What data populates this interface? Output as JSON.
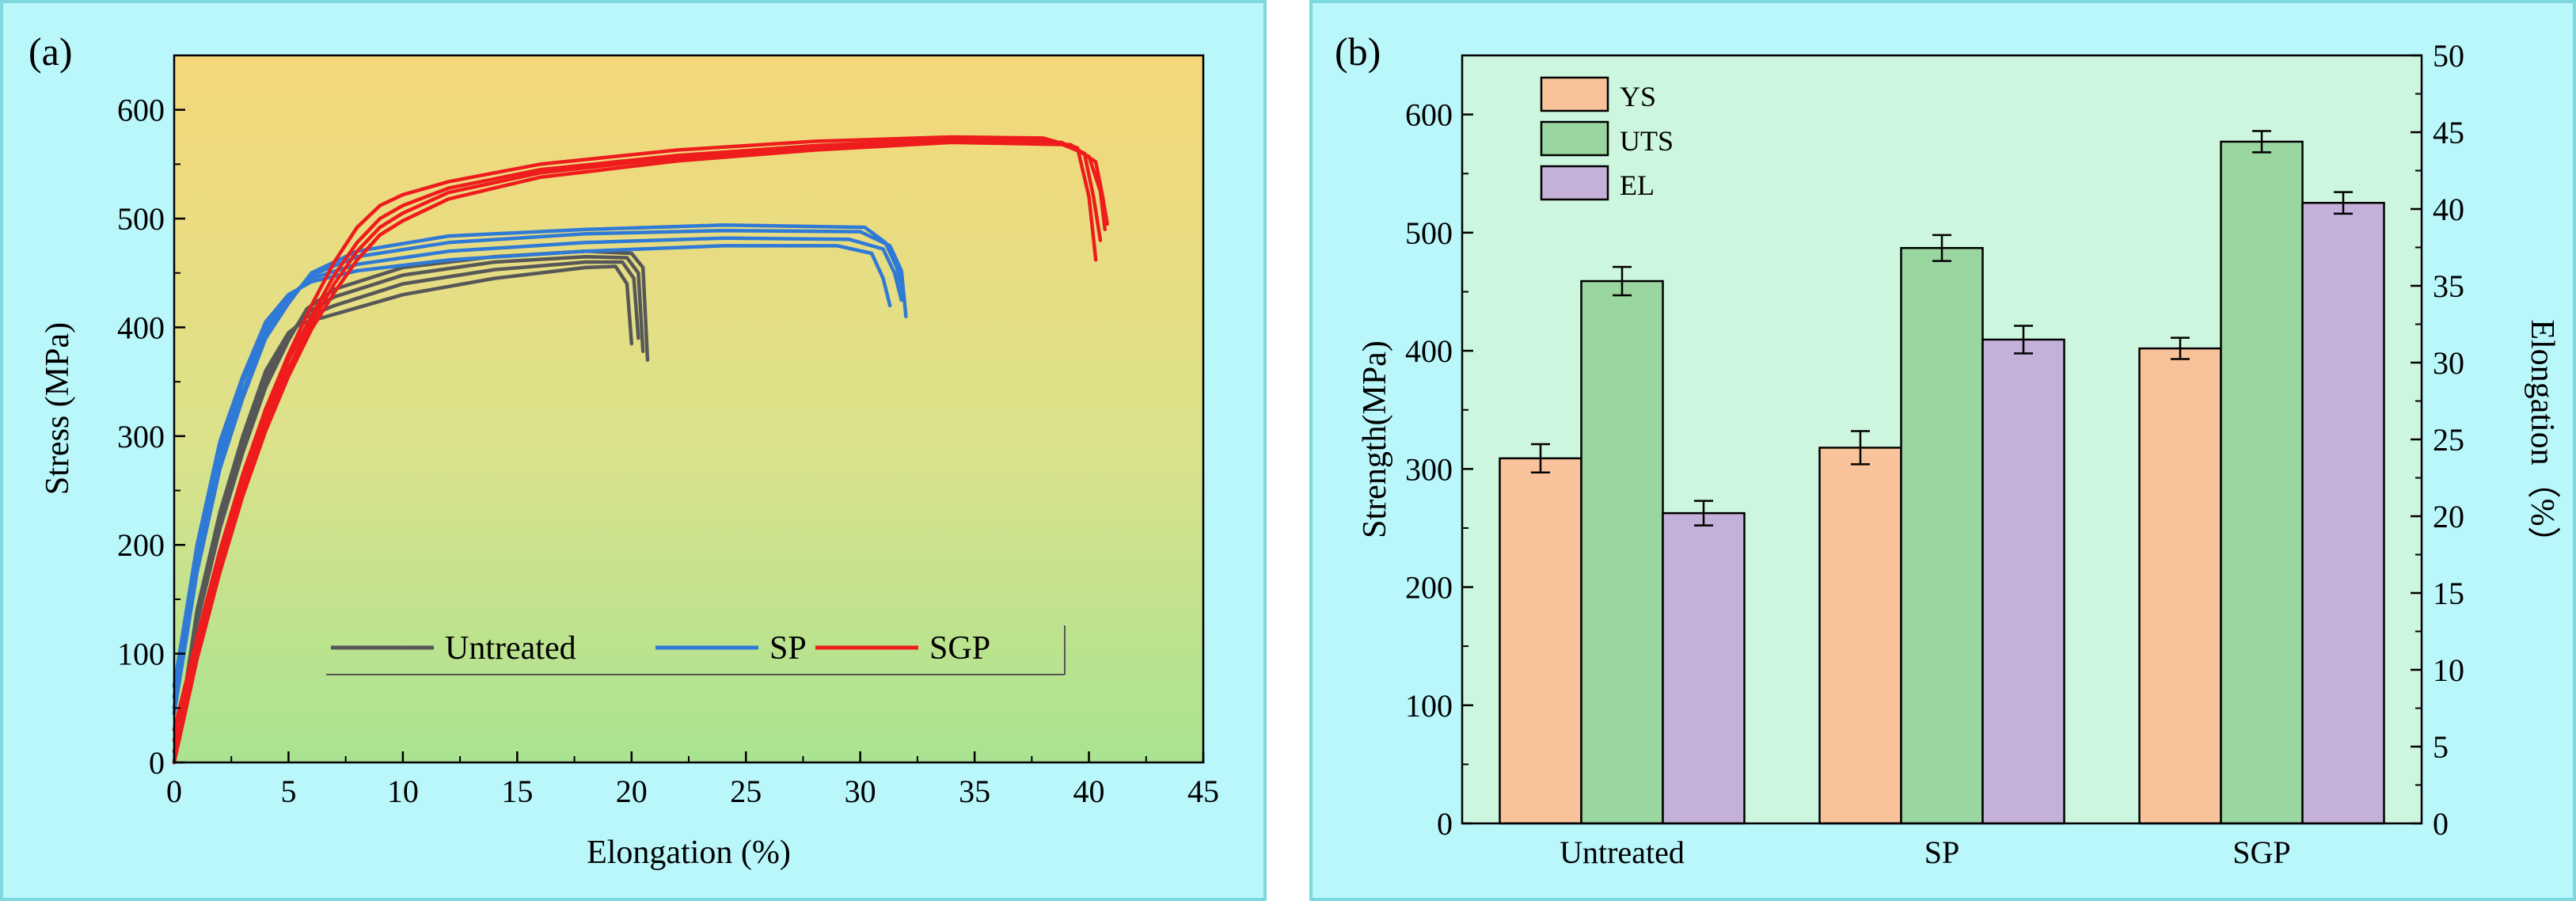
{
  "colors": {
    "panel_bg": "#b9f7fb",
    "border": "#7dd8df",
    "untreated": "#575757",
    "sp": "#2f7ad6",
    "sgp": "#ee1c1c",
    "ys": "#f8c39b",
    "uts": "#9ad6a0",
    "el": "#c4b0d8",
    "plot_b_bg": "#cdf6df"
  },
  "chart_data": [
    {
      "id": "a",
      "panel_label": "(a)",
      "type": "line",
      "xlabel": "Elongation (%)",
      "ylabel": "Stress (MPa)",
      "xlim": [
        0,
        45
      ],
      "ylim": [
        0,
        650
      ],
      "xticks": [
        "0",
        "5",
        "10",
        "15",
        "20",
        "25",
        "30",
        "35",
        "40",
        "45"
      ],
      "yticks": [
        "0",
        "100",
        "200",
        "300",
        "400",
        "500",
        "600"
      ],
      "legend": [
        "Untreated",
        "SP",
        "SGP"
      ],
      "series": [
        {
          "name": "Untreated",
          "curves": [
            {
              "x": [
                0,
                1,
                2,
                3,
                4,
                5,
                5.5,
                7,
                10,
                14,
                18,
                19.3,
                19.8,
                20.0
              ],
              "y": [
                0,
                140,
                230,
                300,
                360,
                395,
                403,
                412,
                430,
                445,
                455,
                456,
                440,
                385
              ]
            },
            {
              "x": [
                0,
                1,
                2,
                3,
                4,
                5,
                5.6,
                7,
                10,
                14,
                18,
                19.6,
                20.1,
                20.3
              ],
              "y": [
                0,
                135,
                225,
                295,
                355,
                392,
                408,
                420,
                440,
                453,
                460,
                460,
                445,
                390
              ]
            },
            {
              "x": [
                0,
                1,
                2,
                3,
                4,
                5,
                5.7,
                7,
                10,
                14,
                18,
                19.8,
                20.3,
                20.5
              ],
              "y": [
                0,
                130,
                220,
                290,
                350,
                390,
                412,
                428,
                448,
                460,
                465,
                464,
                450,
                378
              ]
            },
            {
              "x": [
                0,
                1,
                2,
                3,
                4,
                5,
                5.8,
                7,
                10,
                14,
                18,
                20.0,
                20.5,
                20.7
              ],
              "y": [
                0,
                128,
                215,
                285,
                345,
                388,
                417,
                435,
                455,
                465,
                470,
                468,
                455,
                370
              ]
            }
          ]
        },
        {
          "name": "SP",
          "curves": [
            {
              "x": [
                0,
                1,
                2,
                3,
                4,
                5,
                6,
                8,
                12,
                18,
                24,
                29,
                30.5,
                31.0,
                31.3
              ],
              "y": [
                70,
                200,
                295,
                355,
                405,
                430,
                442,
                452,
                462,
                470,
                475,
                475,
                468,
                445,
                420
              ]
            },
            {
              "x": [
                0,
                1,
                2,
                3,
                4,
                5,
                6,
                8,
                12,
                18,
                24,
                29.5,
                31.0,
                31.5,
                31.8
              ],
              "y": [
                60,
                190,
                285,
                350,
                400,
                428,
                445,
                458,
                470,
                478,
                482,
                481,
                472,
                450,
                425
              ]
            },
            {
              "x": [
                0,
                1,
                2,
                3,
                4,
                5,
                6,
                8,
                12,
                18,
                24,
                30,
                31.3,
                31.8,
                32.0
              ],
              "y": [
                50,
                180,
                275,
                340,
                395,
                425,
                448,
                465,
                478,
                486,
                489,
                488,
                475,
                452,
                410
              ]
            },
            {
              "x": [
                0,
                1,
                2,
                3,
                4,
                5,
                6,
                8,
                12,
                18,
                24,
                30.2,
                31.1,
                31.6,
                31.9
              ],
              "y": [
                45,
                175,
                270,
                335,
                390,
                422,
                450,
                470,
                484,
                490,
                494,
                492,
                478,
                455,
                430
              ]
            }
          ]
        },
        {
          "name": "SGP",
          "curves": [
            {
              "x": [
                0,
                1,
                2,
                3,
                4,
                5,
                6,
                7,
                8,
                9,
                10,
                12,
                16,
                22,
                28,
                34,
                38,
                39.5,
                40.0,
                40.3
              ],
              "y": [
                30,
                115,
                195,
                265,
                325,
                375,
                420,
                460,
                492,
                512,
                522,
                534,
                550,
                563,
                571,
                575,
                574,
                565,
                520,
                462
              ]
            },
            {
              "x": [
                0,
                1,
                2,
                3,
                4,
                5,
                6,
                7,
                8,
                9,
                10,
                12,
                16,
                22,
                28,
                34,
                38.5,
                39.8,
                40.2,
                40.5
              ],
              "y": [
                20,
                105,
                185,
                255,
                318,
                370,
                410,
                448,
                478,
                500,
                512,
                528,
                545,
                558,
                567,
                573,
                571,
                560,
                520,
                480
              ]
            },
            {
              "x": [
                0,
                1,
                2,
                3,
                4,
                5,
                6,
                7,
                8,
                9,
                10,
                12,
                16,
                22,
                28,
                34,
                38.8,
                40.0,
                40.5,
                40.7
              ],
              "y": [
                10,
                100,
                180,
                250,
                310,
                362,
                404,
                440,
                470,
                492,
                505,
                524,
                542,
                556,
                565,
                571,
                570,
                557,
                525,
                490
              ]
            },
            {
              "x": [
                0,
                1,
                2,
                3,
                4,
                5,
                6,
                7,
                8,
                9,
                10,
                12,
                16,
                22,
                28,
                34,
                39.2,
                40.3,
                40.6,
                40.8
              ],
              "y": [
                0,
                95,
                175,
                245,
                305,
                355,
                398,
                432,
                462,
                485,
                498,
                518,
                538,
                553,
                563,
                570,
                568,
                552,
                520,
                495
              ]
            }
          ]
        }
      ]
    },
    {
      "id": "b",
      "panel_label": "(b)",
      "type": "bar",
      "xlabel": "",
      "ylabel": "Strength(MPa)",
      "y2label": "Elongation（%）",
      "ylim": [
        0,
        650
      ],
      "y2lim": [
        0,
        50
      ],
      "yticks": [
        "0",
        "100",
        "200",
        "300",
        "400",
        "500",
        "600"
      ],
      "y2ticks": [
        "0",
        "5",
        "10",
        "15",
        "20",
        "25",
        "30",
        "35",
        "40",
        "45",
        "50"
      ],
      "categories": [
        "Untreated",
        "SP",
        "SGP"
      ],
      "series": [
        {
          "name": "YS",
          "axis": "left",
          "values": [
            309,
            318,
            402
          ],
          "errors": [
            12,
            14,
            9
          ]
        },
        {
          "name": "UTS",
          "axis": "left",
          "values": [
            459,
            487,
            577
          ],
          "errors": [
            12,
            11,
            9
          ]
        },
        {
          "name": "EL",
          "axis": "right",
          "values": [
            20.2,
            31.5,
            40.4
          ],
          "errors": [
            0.8,
            0.9,
            0.7
          ]
        }
      ]
    }
  ]
}
